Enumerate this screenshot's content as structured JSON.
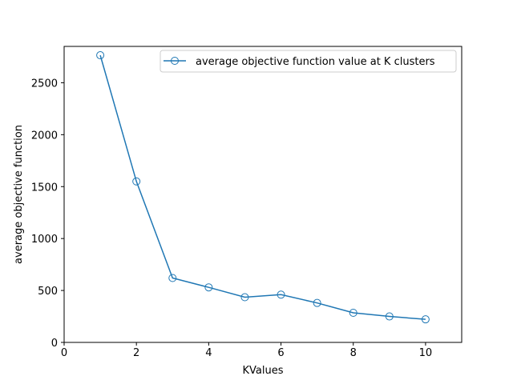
{
  "chart_data": {
    "type": "line",
    "title": "",
    "xlabel": "KValues",
    "ylabel": "average objective function",
    "xlim": [
      0,
      11
    ],
    "ylim": [
      0,
      2850
    ],
    "xticks": [
      0,
      2,
      4,
      6,
      8,
      10
    ],
    "yticks": [
      0,
      500,
      1000,
      1500,
      2000,
      2500
    ],
    "grid": false,
    "legend": {
      "location": "top-right",
      "entries": [
        "average objective function value at K clusters"
      ]
    },
    "series": [
      {
        "name": "average objective function value at K clusters",
        "color": "#1f77b4",
        "marker": "open-circle",
        "x": [
          1,
          2,
          3,
          4,
          5,
          6,
          7,
          8,
          9,
          10
        ],
        "y": [
          2765,
          1550,
          620,
          530,
          435,
          460,
          380,
          285,
          250,
          222
        ]
      }
    ]
  }
}
